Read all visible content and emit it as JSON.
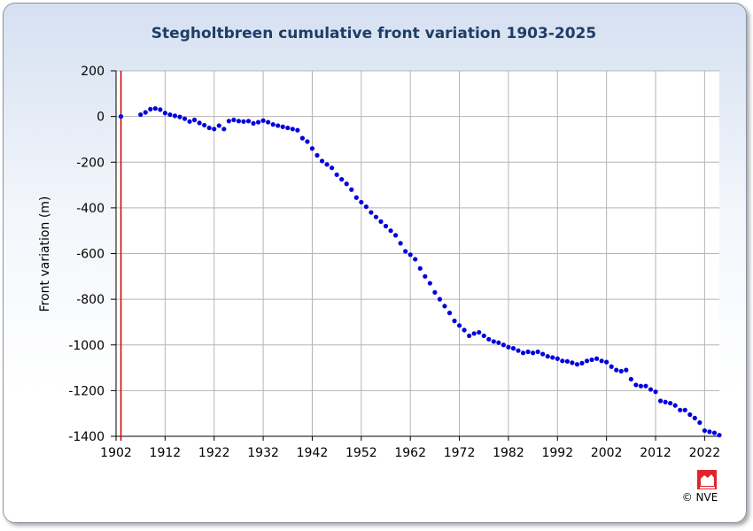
{
  "chart_data": {
    "type": "scatter",
    "title": "Stegholtbreen  cumulative front variation 1903-2025",
    "xlabel": "",
    "ylabel": "Front variation (m)",
    "xlim": [
      1902,
      2025
    ],
    "ylim": [
      -1400,
      200
    ],
    "x_ticks": [
      "1902",
      "1912",
      "1922",
      "1932",
      "1942",
      "1952",
      "1962",
      "1972",
      "1982",
      "1992",
      "2002",
      "2012",
      "2022"
    ],
    "y_ticks": [
      "200",
      "0",
      "-200",
      "-400",
      "-600",
      "-800",
      "-1000",
      "-1200",
      "-1400"
    ],
    "grid": true,
    "reference_line_year": 1903,
    "point_color": "#0000dd",
    "reference_line_color": "#cc0000",
    "x": [
      1903,
      1907,
      1908,
      1909,
      1910,
      1911,
      1912,
      1913,
      1914,
      1915,
      1916,
      1917,
      1918,
      1919,
      1920,
      1921,
      1922,
      1923,
      1924,
      1925,
      1926,
      1927,
      1928,
      1929,
      1930,
      1931,
      1932,
      1933,
      1934,
      1935,
      1936,
      1937,
      1938,
      1939,
      1940,
      1941,
      1942,
      1943,
      1944,
      1945,
      1946,
      1947,
      1948,
      1949,
      1950,
      1951,
      1952,
      1953,
      1954,
      1955,
      1956,
      1957,
      1958,
      1959,
      1960,
      1961,
      1962,
      1963,
      1964,
      1965,
      1966,
      1967,
      1968,
      1969,
      1970,
      1971,
      1972,
      1973,
      1974,
      1975,
      1976,
      1977,
      1978,
      1979,
      1980,
      1981,
      1982,
      1983,
      1984,
      1985,
      1986,
      1987,
      1988,
      1989,
      1990,
      1991,
      1992,
      1993,
      1994,
      1995,
      1996,
      1997,
      1998,
      1999,
      2000,
      2001,
      2002,
      2003,
      2004,
      2005,
      2006,
      2007,
      2008,
      2009,
      2010,
      2011,
      2012,
      2013,
      2014,
      2015,
      2016,
      2017,
      2018,
      2019,
      2020,
      2021,
      2022,
      2023,
      2024,
      2025
    ],
    "y": [
      0,
      8,
      18,
      32,
      35,
      30,
      15,
      8,
      3,
      -2,
      -10,
      -22,
      -15,
      -28,
      -38,
      -50,
      -55,
      -40,
      -55,
      -20,
      -15,
      -20,
      -22,
      -20,
      -30,
      -25,
      -18,
      -25,
      -35,
      -40,
      -45,
      -50,
      -55,
      -60,
      -95,
      -110,
      -140,
      -170,
      -195,
      -210,
      -225,
      -255,
      -275,
      -295,
      -320,
      -355,
      -375,
      -395,
      -420,
      -440,
      -460,
      -480,
      -500,
      -520,
      -555,
      -590,
      -605,
      -625,
      -665,
      -700,
      -730,
      -770,
      -800,
      -830,
      -860,
      -895,
      -915,
      -935,
      -960,
      -950,
      -945,
      -960,
      -975,
      -985,
      -990,
      -1000,
      -1010,
      -1015,
      -1025,
      -1035,
      -1030,
      -1035,
      -1030,
      -1040,
      -1050,
      -1055,
      -1060,
      -1070,
      -1072,
      -1078,
      -1085,
      -1080,
      -1070,
      -1065,
      -1060,
      -1070,
      -1075,
      -1095,
      -1110,
      -1115,
      -1110,
      -1150,
      -1175,
      -1180,
      -1180,
      -1195,
      -1205,
      -1245,
      -1250,
      -1255,
      -1265,
      -1285,
      -1285,
      -1305,
      -1320,
      -1340,
      -1375,
      -1380,
      -1385,
      -1395
    ]
  },
  "credit": {
    "text": "© NVE",
    "logo_icon": "nve-lion-logo",
    "logo_color": "#e0242a"
  }
}
